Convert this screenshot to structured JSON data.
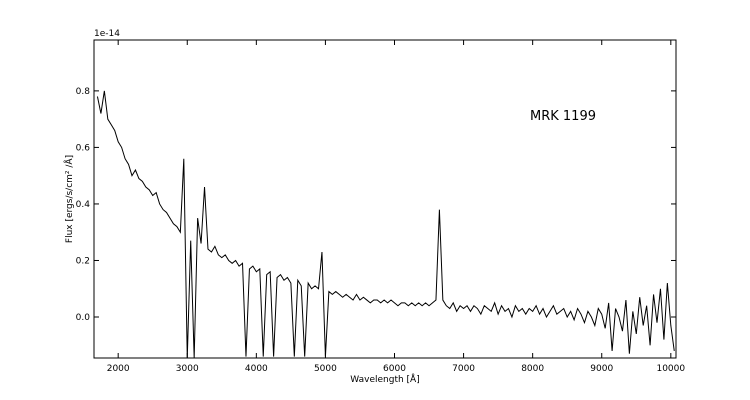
{
  "chart_data": {
    "type": "line",
    "annotation": "MRK 1199",
    "x_label": "Wavelength  [Å]",
    "y_label": "Flux  [ergs/s/cm² /Å]",
    "y_offset_label": "1e-14",
    "color": "#000000",
    "xlim": [
      1650,
      10075
    ],
    "ylim": [
      -0.145,
      0.98
    ],
    "xticks": [
      2000,
      3000,
      4000,
      5000,
      6000,
      7000,
      8000,
      9000,
      10000
    ],
    "yticks": [
      {
        "value": 0,
        "label": "0.0"
      },
      0.2,
      0.4,
      0.6,
      0.8
    ],
    "x": [
      1700,
      1750,
      1800,
      1850,
      1900,
      1950,
      2000,
      2050,
      2100,
      2150,
      2200,
      2250,
      2300,
      2350,
      2400,
      2450,
      2500,
      2550,
      2600,
      2650,
      2700,
      2750,
      2800,
      2850,
      2900,
      2950,
      3000,
      3050,
      3100,
      3150,
      3200,
      3250,
      3300,
      3350,
      3400,
      3450,
      3500,
      3550,
      3600,
      3650,
      3700,
      3750,
      3800,
      3850,
      3900,
      3950,
      4000,
      4050,
      4100,
      4150,
      4200,
      4250,
      4300,
      4350,
      4400,
      4450,
      4500,
      4550,
      4600,
      4650,
      4700,
      4750,
      4800,
      4850,
      4900,
      4950,
      5000,
      5050,
      5100,
      5150,
      5200,
      5250,
      5300,
      5350,
      5400,
      5450,
      5500,
      5550,
      5600,
      5650,
      5700,
      5750,
      5800,
      5850,
      5900,
      5950,
      6000,
      6050,
      6100,
      6150,
      6200,
      6250,
      6300,
      6350,
      6400,
      6450,
      6500,
      6550,
      6600,
      6650,
      6700,
      6750,
      6800,
      6850,
      6900,
      6950,
      7000,
      7050,
      7100,
      7150,
      7200,
      7250,
      7300,
      7350,
      7400,
      7450,
      7500,
      7550,
      7600,
      7650,
      7700,
      7750,
      7800,
      7850,
      7900,
      7950,
      8000,
      8050,
      8100,
      8150,
      8200,
      8250,
      8300,
      8350,
      8400,
      8450,
      8500,
      8550,
      8600,
      8650,
      8700,
      8750,
      8800,
      8850,
      8900,
      8950,
      9000,
      9050,
      9100,
      9150,
      9200,
      9250,
      9300,
      9350,
      9400,
      9450,
      9500,
      9550,
      9600,
      9650,
      9700,
      9750,
      9800,
      9850,
      9900,
      9950,
      10000,
      10050
    ],
    "values": [
      0.78,
      0.72,
      0.8,
      0.7,
      0.68,
      0.66,
      0.62,
      0.6,
      0.56,
      0.54,
      0.5,
      0.52,
      0.49,
      0.48,
      0.46,
      0.45,
      0.43,
      0.44,
      0.4,
      0.38,
      0.37,
      0.35,
      0.33,
      0.32,
      0.3,
      0.56,
      -0.145,
      0.27,
      -0.145,
      0.35,
      0.26,
      0.46,
      0.24,
      0.23,
      0.25,
      0.22,
      0.21,
      0.22,
      0.2,
      0.19,
      0.2,
      0.18,
      0.19,
      -0.14,
      0.17,
      0.18,
      0.16,
      0.17,
      -0.14,
      0.15,
      0.16,
      -0.14,
      0.14,
      0.15,
      0.13,
      0.14,
      0.12,
      -0.14,
      0.13,
      0.11,
      -0.14,
      0.12,
      0.1,
      0.11,
      0.1,
      0.23,
      -0.14,
      0.09,
      0.08,
      0.09,
      0.08,
      0.07,
      0.08,
      0.07,
      0.06,
      0.08,
      0.06,
      0.07,
      0.06,
      0.05,
      0.06,
      0.06,
      0.05,
      0.06,
      0.05,
      0.06,
      0.05,
      0.04,
      0.05,
      0.05,
      0.04,
      0.05,
      0.04,
      0.05,
      0.04,
      0.05,
      0.04,
      0.05,
      0.06,
      0.38,
      0.06,
      0.04,
      0.03,
      0.05,
      0.02,
      0.04,
      0.03,
      0.04,
      0.02,
      0.04,
      0.03,
      0.01,
      0.04,
      0.03,
      0.02,
      0.05,
      0.01,
      0.04,
      0.02,
      0.03,
      0.0,
      0.04,
      0.02,
      0.03,
      0.01,
      0.03,
      0.02,
      0.04,
      0.01,
      0.03,
      0.0,
      0.02,
      0.04,
      0.01,
      0.02,
      0.03,
      0.0,
      0.02,
      -0.01,
      0.03,
      0.01,
      -0.02,
      0.02,
      0.0,
      -0.03,
      0.03,
      0.01,
      -0.04,
      0.05,
      -0.12,
      0.03,
      0.0,
      -0.05,
      0.06,
      -0.13,
      0.02,
      -0.06,
      0.07,
      -0.03,
      0.04,
      -0.1,
      0.08,
      -0.02,
      0.1,
      -0.08,
      0.12,
      -0.03,
      -0.12
    ]
  }
}
